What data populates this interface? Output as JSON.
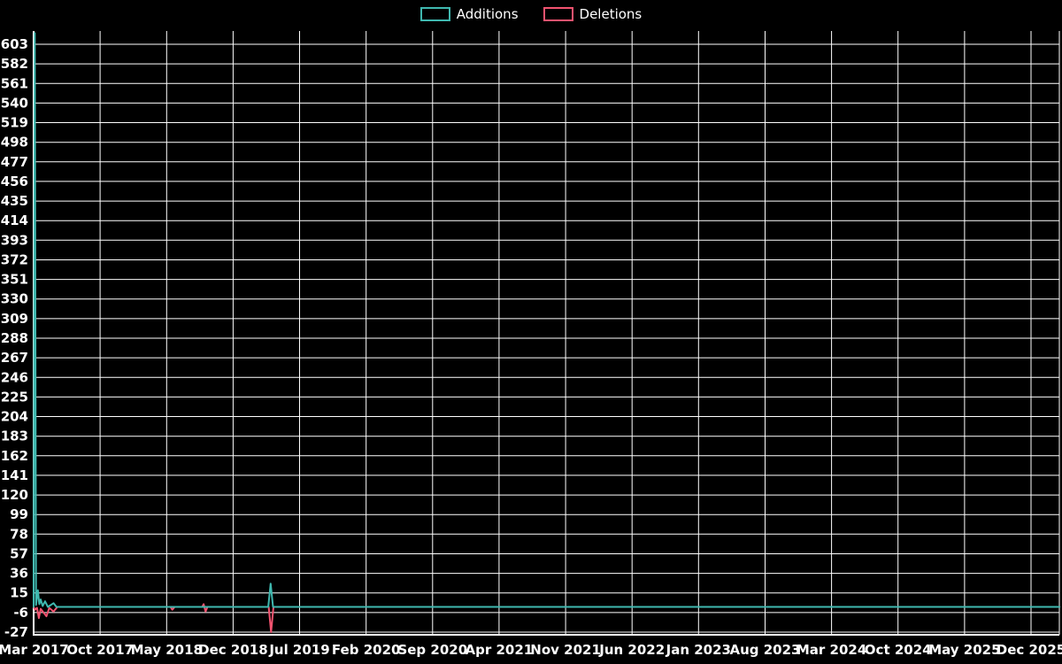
{
  "page": {
    "background_color": "#000000",
    "text_color": "#ffffff"
  },
  "legend": {
    "items": [
      {
        "label": "Additions",
        "color": "#3fb8af"
      },
      {
        "label": "Deletions",
        "color": "#f2536f"
      }
    ]
  },
  "chart_data": {
    "type": "line",
    "title": "",
    "xlabel": "",
    "ylabel": "",
    "grid": true,
    "legend_position": "top-center",
    "grid_color": "#ffffff",
    "axis_color": "#ffffff",
    "x_tick_labels": [
      "Mar 2017",
      "Oct 2017",
      "May 2018",
      "Dec 2018",
      "Jul 2019",
      "Feb 2020",
      "Sep 2020",
      "Apr 2021",
      "Nov 2021",
      "Jun 2022",
      "Jan 2023",
      "Aug 2023",
      "Mar 2024",
      "Oct 2024",
      "May 2025",
      "Dec 2025"
    ],
    "x_tick_months": [
      0,
      7,
      14,
      21,
      28,
      35,
      42,
      49,
      56,
      63,
      70,
      77,
      84,
      91,
      98,
      105
    ],
    "x_range_months": [
      0,
      108
    ],
    "y_ticks": [
      603,
      582,
      561,
      540,
      519,
      498,
      477,
      456,
      435,
      414,
      393,
      372,
      351,
      330,
      309,
      288,
      267,
      246,
      225,
      204,
      183,
      162,
      141,
      120,
      99,
      78,
      57,
      36,
      15,
      -6,
      -27
    ],
    "y_range": [
      -30,
      617
    ],
    "series": [
      {
        "name": "Additions",
        "color": "#3fb8af",
        "points": [
          [
            0,
            0
          ],
          [
            0.12,
            615
          ],
          [
            0.25,
            2
          ],
          [
            0.45,
            18
          ],
          [
            0.6,
            3
          ],
          [
            0.75,
            8
          ],
          [
            0.95,
            1
          ],
          [
            1.2,
            6
          ],
          [
            1.5,
            0
          ],
          [
            2.1,
            4
          ],
          [
            2.4,
            0
          ],
          [
            24.7,
            0
          ],
          [
            24.95,
            25
          ],
          [
            25.2,
            0
          ],
          [
            108,
            0
          ]
        ]
      },
      {
        "name": "Deletions",
        "color": "#f2536f",
        "points": [
          [
            0,
            0
          ],
          [
            0.15,
            -3
          ],
          [
            0.35,
            -1
          ],
          [
            0.55,
            -12
          ],
          [
            0.75,
            -2
          ],
          [
            1.35,
            -10
          ],
          [
            1.65,
            -1
          ],
          [
            2.1,
            -5
          ],
          [
            2.5,
            0
          ],
          [
            14.4,
            0
          ],
          [
            14.6,
            -3
          ],
          [
            14.85,
            0
          ],
          [
            17.75,
            0
          ],
          [
            17.9,
            3
          ],
          [
            18.1,
            -5
          ],
          [
            18.3,
            0
          ],
          [
            24.75,
            0
          ],
          [
            25.0,
            -27
          ],
          [
            25.25,
            0
          ],
          [
            108,
            0
          ]
        ]
      }
    ]
  }
}
